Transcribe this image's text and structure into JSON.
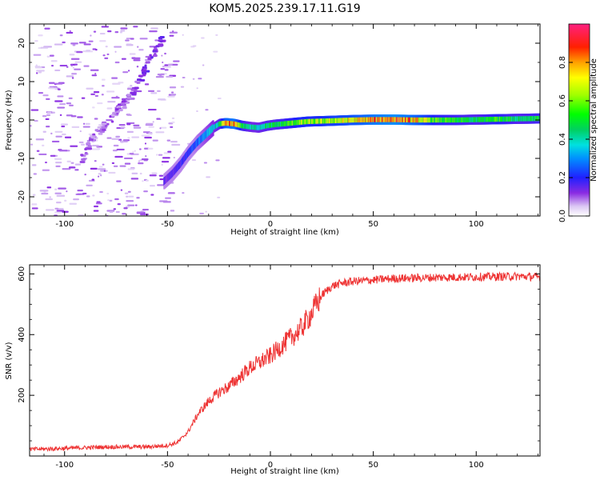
{
  "figure_title": "KOM5.2025.239.17.11.G19",
  "chart_data": [
    {
      "type": "heatmap",
      "title": "KOM5.2025.239.17.11.G19",
      "xlabel": "Height of straight line (km)",
      "ylabel": "Frequency (Hz)",
      "xlim": [
        -117,
        131
      ],
      "ylim": [
        -25,
        25
      ],
      "xticks": [
        -100,
        -50,
        0,
        50,
        100
      ],
      "yticks": [
        -20,
        -10,
        0,
        10,
        20
      ],
      "xtick_labels": [
        "-100",
        "-50",
        "0",
        "50",
        "100"
      ],
      "ytick_labels": [
        "-20",
        "-10",
        "0",
        "10",
        "20"
      ],
      "colorbar": {
        "label": "Normalized spectral amplitude",
        "range": [
          0,
          1
        ],
        "ticks": [
          0.0,
          0.2,
          0.4,
          0.6,
          0.8
        ],
        "tick_labels": [
          "0.0",
          "0.2",
          "0.4",
          "0.6",
          "0.8"
        ]
      },
      "main_track": {
        "x": [
          -52,
          -48,
          -44,
          -40,
          -36,
          -32,
          -28,
          -25,
          -22,
          -18,
          -14,
          -10,
          -6,
          -2,
          2,
          6,
          10,
          14,
          18,
          24,
          30,
          40,
          50,
          60,
          70,
          80,
          90,
          100,
          110,
          120,
          131
        ],
        "y": [
          -16,
          -14,
          -11.5,
          -8.5,
          -6,
          -4,
          -2,
          -1,
          -0.8,
          -1,
          -1.5,
          -1.8,
          -2,
          -1.5,
          -1.2,
          -1,
          -0.8,
          -0.6,
          -0.4,
          -0.3,
          -0.2,
          0,
          0.1,
          0.1,
          0,
          0,
          0,
          0.1,
          0.2,
          0.3,
          0.4
        ],
        "amplitude": [
          0.15,
          0.15,
          0.18,
          0.2,
          0.25,
          0.3,
          0.35,
          0.45,
          0.75,
          0.8,
          0.5,
          0.4,
          0.4,
          0.45,
          0.45,
          0.5,
          0.55,
          0.6,
          0.6,
          0.6,
          0.65,
          0.7,
          0.8,
          0.85,
          0.75,
          0.55,
          0.5,
          0.45,
          0.55,
          0.45,
          0.5
        ]
      },
      "ghost_track": {
        "x": [
          -92,
          -88,
          -82,
          -76,
          -72,
          -68,
          -64,
          -60,
          -56,
          -52
        ],
        "y": [
          -10,
          -6,
          -2,
          1,
          4,
          6,
          10,
          14,
          18,
          22
        ],
        "amplitude": [
          0.08,
          0.07,
          0.07,
          0.08,
          0.09,
          0.09,
          0.1,
          0.12,
          0.12,
          0.13
        ]
      }
    },
    {
      "type": "line",
      "title": "",
      "xlabel": "Height of straight line (km)",
      "ylabel": "SNR (v/v)",
      "xlim": [
        -117,
        131
      ],
      "ylim": [
        0,
        630
      ],
      "xticks": [
        -100,
        -50,
        0,
        50,
        100
      ],
      "yticks": [
        200,
        400,
        600
      ],
      "xtick_labels": [
        "-100",
        "-50",
        "0",
        "50",
        "100"
      ],
      "ytick_labels": [
        "200",
        "400",
        "600"
      ],
      "line_color": "#ee3333",
      "series": [
        {
          "name": "SNR",
          "x": [
            -117,
            -100,
            -80,
            -60,
            -50,
            -45,
            -40,
            -35,
            -30,
            -25,
            -20,
            -15,
            -10,
            -5,
            0,
            5,
            10,
            15,
            20,
            25,
            30,
            35,
            40,
            50,
            60,
            80,
            100,
            120,
            131
          ],
          "y": [
            22,
            25,
            30,
            30,
            35,
            45,
            80,
            140,
            180,
            210,
            230,
            260,
            290,
            310,
            330,
            360,
            390,
            420,
            470,
            530,
            560,
            570,
            575,
            580,
            585,
            588,
            590,
            592,
            590
          ]
        }
      ]
    }
  ]
}
